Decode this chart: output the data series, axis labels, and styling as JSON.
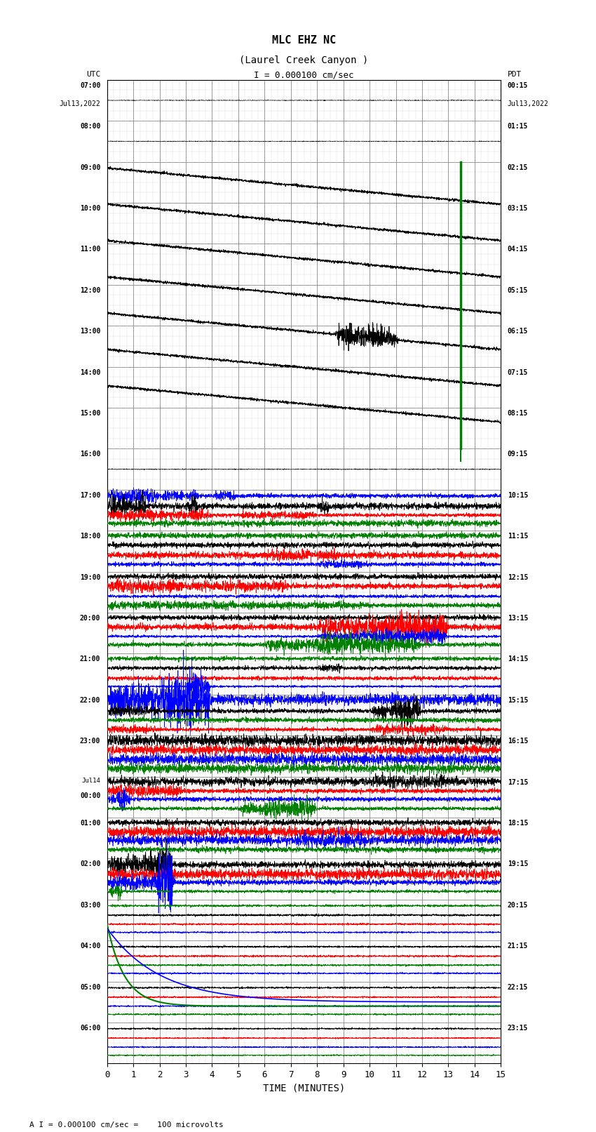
{
  "title_line1": "MLC EHZ NC",
  "title_line2": "(Laurel Creek Canyon )",
  "scale_text": "I = 0.000100 cm/sec",
  "footer_text": "A I = 0.000100 cm/sec =    100 microvolts",
  "left_label_line1": "UTC",
  "left_label_line2": "Jul13,2022",
  "right_label_line1": "PDT",
  "right_label_line2": "Jul13,2022",
  "xlabel": "TIME (MINUTES)",
  "utc_times": [
    "07:00",
    "08:00",
    "09:00",
    "10:00",
    "11:00",
    "12:00",
    "13:00",
    "14:00",
    "15:00",
    "16:00",
    "17:00",
    "18:00",
    "19:00",
    "20:00",
    "21:00",
    "22:00",
    "23:00",
    "Jul14",
    "00:00",
    "01:00",
    "02:00",
    "03:00",
    "04:00",
    "05:00",
    "06:00"
  ],
  "pdt_times": [
    "00:15",
    "01:15",
    "02:15",
    "03:15",
    "04:15",
    "05:15",
    "06:15",
    "07:15",
    "08:15",
    "09:15",
    "10:15",
    "11:15",
    "12:15",
    "13:15",
    "14:15",
    "15:15",
    "16:15",
    "17:15",
    "18:15",
    "19:15",
    "20:15",
    "21:15",
    "22:15",
    "23:15"
  ],
  "num_rows": 24,
  "minutes": 15,
  "bg_color": "#ffffff",
  "grid_color": "#aaaaaa",
  "minor_grid_color": "#dddddd"
}
